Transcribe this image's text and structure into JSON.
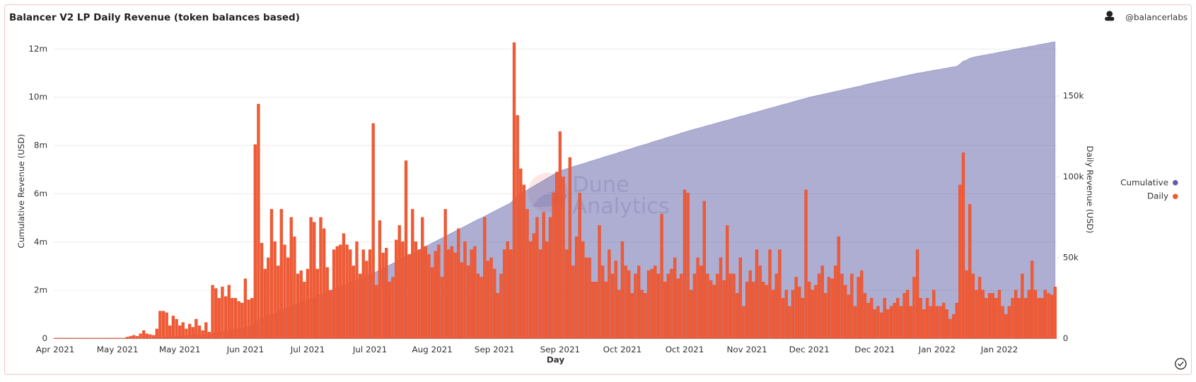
{
  "chart_data": {
    "type": "bar",
    "title": "Balancer V2 LP Daily Revenue (token balances based)",
    "source": "@balancerlabs",
    "watermark": [
      "Dune",
      "Analytics"
    ],
    "x_label": "Day",
    "y_label": "Cumulative Revenue (USD)",
    "y2_label": "Daily Revenue (USD)",
    "legend": "right",
    "grid": true,
    "ylim": [
      0,
      12600000
    ],
    "yticks": [
      0,
      {
        "value": 2000000,
        "label": "2m"
      },
      {
        "value": 4000000,
        "label": "4m"
      },
      {
        "value": 6000000,
        "label": "6m"
      },
      {
        "value": 8000000,
        "label": "8m"
      },
      {
        "value": 10000000,
        "label": "10m"
      },
      {
        "value": 12000000,
        "label": "12m"
      }
    ],
    "y2lim": [
      0,
      188000
    ],
    "y2ticks": [
      0,
      {
        "value": 50000,
        "label": "50k"
      },
      {
        "value": 100000,
        "label": "100k"
      },
      {
        "value": 150000,
        "label": "150k"
      }
    ],
    "categories": [
      "Apr 2021",
      null,
      null,
      null,
      null,
      null,
      null,
      null,
      null,
      null,
      null,
      null,
      null,
      null,
      null,
      null,
      null,
      null,
      null,
      "May 2021",
      null,
      null,
      null,
      null,
      null,
      null,
      null,
      null,
      null,
      null,
      null,
      null,
      null,
      null,
      null,
      null,
      null,
      null,
      "May 2021",
      null,
      null,
      null,
      null,
      null,
      null,
      null,
      null,
      null,
      null,
      null,
      null,
      null,
      null,
      null,
      null,
      null,
      null,
      null,
      "Jun 2021",
      null,
      null,
      null,
      null,
      null,
      null,
      null,
      null,
      null,
      null,
      null,
      null,
      null,
      null,
      null,
      null,
      null,
      null,
      "Jul 2021",
      null,
      null,
      null,
      null,
      null,
      null,
      null,
      null,
      null,
      null,
      null,
      null,
      null,
      null,
      null,
      null,
      null,
      null,
      "Jul 2021",
      null,
      null,
      null,
      null,
      null,
      null,
      null,
      null,
      null,
      null,
      null,
      null,
      null,
      null,
      null,
      null,
      null,
      null,
      "Aug 2021",
      null,
      null,
      null,
      null,
      null,
      null,
      null,
      null,
      null,
      null,
      null,
      null,
      null,
      null,
      null,
      null,
      null,
      null,
      "Sep 2021",
      null,
      null,
      null,
      null,
      null,
      null,
      null,
      null,
      null,
      null,
      null,
      null,
      null,
      null,
      null,
      null,
      null,
      null,
      null,
      "Sep 2021",
      null,
      null,
      null,
      null,
      null,
      null,
      null,
      null,
      null,
      null,
      null,
      null,
      null,
      null,
      null,
      null,
      null,
      null,
      "Oct 2021",
      null,
      null,
      null,
      null,
      null,
      null,
      null,
      null,
      null,
      null,
      null,
      null,
      null,
      null,
      null,
      null,
      null,
      null,
      "Oct 2021",
      null,
      null,
      null,
      null,
      null,
      null,
      null,
      null,
      null,
      null,
      null,
      null,
      null,
      null,
      null,
      null,
      null,
      null,
      "Nov 2021",
      null,
      null,
      null,
      null,
      null,
      null,
      null,
      null,
      null,
      null,
      null,
      null,
      null,
      null,
      null,
      null,
      null,
      null,
      "Dec 2021",
      null,
      null,
      null,
      null,
      null,
      null,
      null,
      null,
      null,
      null,
      null,
      null,
      null,
      null,
      null,
      null,
      null,
      null,
      null,
      "Dec 2021",
      null,
      null,
      null,
      null,
      null,
      null,
      null,
      null,
      null,
      null,
      null,
      null,
      null,
      null,
      null,
      null,
      null,
      null,
      "Jan 2022",
      null,
      null,
      null,
      null,
      null,
      null,
      null,
      null,
      null,
      null,
      null,
      null,
      null,
      null,
      null,
      null,
      null,
      null,
      "Jan 2022",
      null,
      null,
      null,
      null,
      null,
      null,
      null,
      null,
      null,
      null,
      null,
      null,
      null,
      null,
      null,
      null,
      null
    ],
    "series": [
      {
        "name": "Cumulative",
        "type": "area",
        "axis": "y",
        "color": "#5d5da8",
        "values": [
          0,
          0,
          0,
          0,
          0,
          0,
          0,
          0,
          0,
          0,
          0,
          0,
          0,
          0,
          0,
          0,
          0,
          0,
          0,
          0,
          0,
          0,
          0,
          0,
          10000,
          10000,
          10000,
          10000,
          20000,
          20000,
          20000,
          30000,
          30000,
          50000,
          70000,
          80000,
          90000,
          100000,
          110000,
          120000,
          120000,
          130000,
          140000,
          150000,
          150000,
          160000,
          160000,
          170000,
          200000,
          230000,
          260000,
          290000,
          310000,
          340000,
          370000,
          390000,
          420000,
          440000,
          470000,
          500000,
          520000,
          640000,
          790000,
          850000,
          900000,
          960000,
          1010000,
          1060000,
          1120000,
          1170000,
          1230000,
          1280000,
          1340000,
          1390000,
          1450000,
          1500000,
          1550000,
          1610000,
          1660000,
          1720000,
          1770000,
          1830000,
          1880000,
          1930000,
          1990000,
          2040000,
          2100000,
          2150000,
          2200000,
          2260000,
          2310000,
          2370000,
          2420000,
          2480000,
          2530000,
          2580000,
          2640000,
          2700000,
          2770000,
          2840000,
          2910000,
          2980000,
          3050000,
          3120000,
          3190000,
          3260000,
          3330000,
          3400000,
          3470000,
          3540000,
          3610000,
          3680000,
          3750000,
          3820000,
          3890000,
          3960000,
          4030000,
          4100000,
          4170000,
          4240000,
          4310000,
          4380000,
          4450000,
          4520000,
          4590000,
          4660000,
          4730000,
          4800000,
          4870000,
          4940000,
          5000000,
          5070000,
          5140000,
          5210000,
          5280000,
          5350000,
          5420000,
          5490000,
          5560000,
          5630000,
          5800000,
          5920000,
          6000000,
          6080000,
          6160000,
          6240000,
          6320000,
          6400000,
          6480000,
          6560000,
          6640000,
          6720000,
          6800000,
          6880000,
          6940000,
          7000000,
          7040000,
          7080000,
          7130000,
          7170000,
          7210000,
          7250000,
          7290000,
          7340000,
          7380000,
          7420000,
          7460000,
          7510000,
          7550000,
          7590000,
          7630000,
          7670000,
          7720000,
          7760000,
          7800000,
          7840000,
          7880000,
          7930000,
          7970000,
          8010000,
          8050000,
          8090000,
          8140000,
          8180000,
          8220000,
          8260000,
          8310000,
          8350000,
          8390000,
          8430000,
          8470000,
          8520000,
          8560000,
          8600000,
          8640000,
          8680000,
          8710000,
          8750000,
          8790000,
          8830000,
          8860000,
          8900000,
          8940000,
          8980000,
          9020000,
          9050000,
          9090000,
          9130000,
          9170000,
          9210000,
          9240000,
          9280000,
          9320000,
          9360000,
          9390000,
          9430000,
          9470000,
          9510000,
          9550000,
          9580000,
          9620000,
          9660000,
          9700000,
          9730000,
          9770000,
          9810000,
          9850000,
          9890000,
          9920000,
          9960000,
          10000000,
          10030000,
          10060000,
          10090000,
          10120000,
          10150000,
          10180000,
          10210000,
          10240000,
          10270000,
          10300000,
          10330000,
          10360000,
          10390000,
          10420000,
          10450000,
          10480000,
          10520000,
          10550000,
          10580000,
          10610000,
          10640000,
          10670000,
          10700000,
          10730000,
          10760000,
          10790000,
          10820000,
          10850000,
          10880000,
          10910000,
          10940000,
          10970000,
          11000000,
          11020000,
          11040000,
          11070000,
          11090000,
          11120000,
          11140000,
          11160000,
          11190000,
          11210000,
          11240000,
          11260000,
          11280000,
          11380000,
          11500000,
          11540000,
          11620000,
          11660000,
          11690000,
          11710000,
          11740000,
          11760000,
          11790000,
          11810000,
          11840000,
          11870000,
          11890000,
          11920000,
          11940000,
          11970000,
          12000000,
          12020000,
          12050000,
          12070000,
          12100000,
          12120000,
          12150000,
          12180000,
          12200000,
          12230000,
          12250000,
          12280000,
          12300000
        ]
      },
      {
        "name": "Daily",
        "type": "bar",
        "axis": "y2",
        "color": "#f05a35",
        "values": [
          300,
          300,
          300,
          300,
          300,
          300,
          300,
          300,
          300,
          300,
          300,
          300,
          300,
          300,
          300,
          300,
          300,
          300,
          300,
          300,
          300,
          300,
          1000,
          1500,
          2000,
          1500,
          3000,
          5000,
          3000,
          2500,
          2000,
          6000,
          17000,
          17000,
          16000,
          8000,
          14000,
          12000,
          8000,
          10000,
          6000,
          9000,
          7000,
          12000,
          8000,
          5000,
          10000,
          4000,
          33000,
          31000,
          25000,
          32000,
          26000,
          33000,
          25000,
          25000,
          23000,
          22000,
          37000,
          24000,
          25000,
          120000,
          145000,
          59000,
          43000,
          50000,
          80000,
          60000,
          45000,
          80000,
          58000,
          50000,
          75000,
          63000,
          40000,
          42000,
          35000,
          43000,
          75000,
          72000,
          43000,
          75000,
          68000,
          44000,
          30000,
          55000,
          57000,
          58000,
          65000,
          58000,
          55000,
          45000,
          60000,
          40000,
          55000,
          48000,
          55000,
          133000,
          33000,
          73000,
          53000,
          56000,
          35000,
          38000,
          61000,
          70000,
          60000,
          110000,
          52000,
          80000,
          60000,
          55000,
          75000,
          57000,
          52000,
          44000,
          54000,
          58000,
          38000,
          80000,
          55000,
          57000,
          53000,
          68000,
          47000,
          60000,
          45000,
          55000,
          57000,
          40000,
          38000,
          75000,
          48000,
          50000,
          43000,
          28000,
          40000,
          55000,
          60000,
          55000,
          183000,
          138000,
          105000,
          95000,
          80000,
          60000,
          65000,
          75000,
          55000,
          78000,
          60000,
          75000,
          90000,
          103000,
          128000,
          100000,
          55000,
          112000,
          45000,
          63000,
          90000,
          60000,
          50000,
          50000,
          35000,
          35000,
          70000,
          45000,
          35000,
          55000,
          40000,
          48000,
          30000,
          60000,
          45000,
          42000,
          28000,
          40000,
          45000,
          30000,
          28000,
          42000,
          43000,
          45000,
          40000,
          77000,
          35000,
          40000,
          43000,
          50000,
          37000,
          40000,
          92000,
          90000,
          30000,
          40000,
          50000,
          45000,
          85000,
          40000,
          36000,
          33000,
          40000,
          50000,
          36000,
          70000,
          40000,
          40000,
          28000,
          50000,
          20000,
          35000,
          42000,
          35000,
          55000,
          45000,
          35000,
          33000,
          55000,
          30000,
          40000,
          55000,
          25000,
          30000,
          20000,
          30000,
          38000,
          32000,
          25000,
          92000,
          35000,
          30000,
          33000,
          40000,
          45000,
          28000,
          38000,
          37000,
          45000,
          63000,
          40000,
          33000,
          27000,
          40000,
          20000,
          38000,
          42000,
          28000,
          22000,
          25000,
          18000,
          20000,
          16000,
          25000,
          18000,
          20000,
          22000,
          25000,
          20000,
          28000,
          30000,
          20000,
          38000,
          55000,
          25000,
          18000,
          25000,
          20000,
          30000,
          20000,
          20000,
          22000,
          18000,
          12000,
          15000,
          22000,
          95000,
          115000,
          42000,
          83000,
          40000,
          30000,
          38000,
          30000,
          25000,
          28000,
          28000,
          25000,
          30000,
          20000,
          15000,
          20000,
          25000,
          30000,
          25000,
          40000,
          25000,
          30000,
          48000,
          30000,
          25000,
          25000,
          30000,
          28000,
          27000,
          32000
        ]
      }
    ]
  }
}
